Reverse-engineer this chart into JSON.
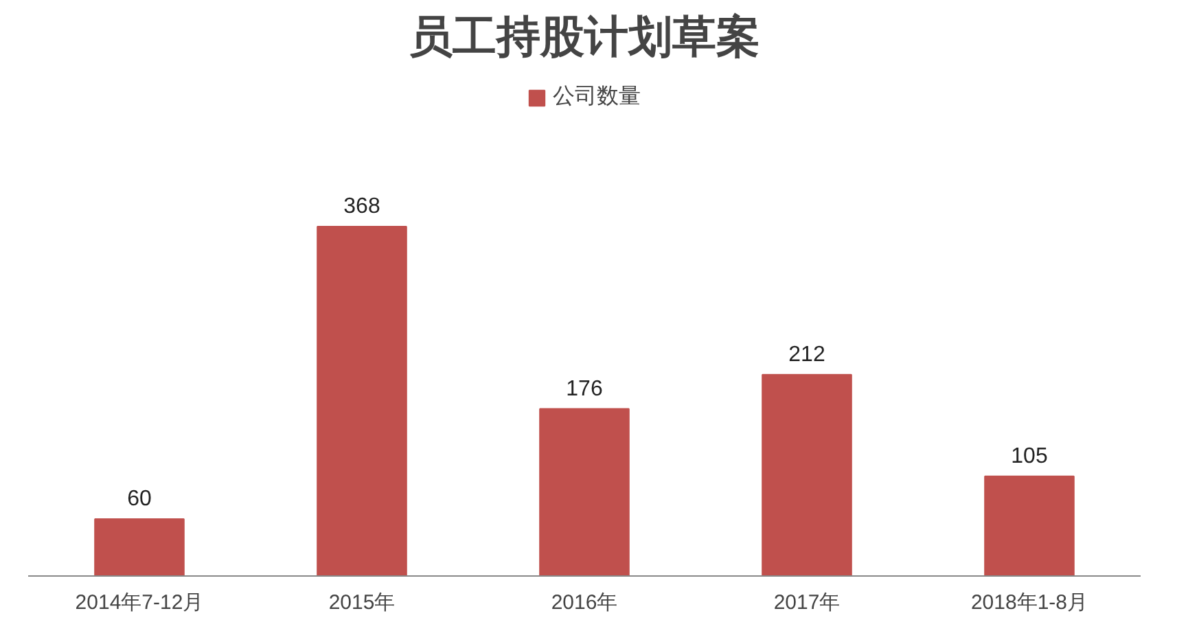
{
  "chart_data": {
    "type": "bar",
    "title": "员工持股计划草案",
    "categories": [
      "2014年7-12月",
      "2015年",
      "2016年",
      "2017年",
      "2018年1-8月"
    ],
    "series": [
      {
        "name": "公司数量",
        "color": "#c0504d",
        "values": [
          60,
          368,
          176,
          212,
          105
        ]
      }
    ],
    "data_labels": true,
    "legend": "top",
    "grid": false
  }
}
